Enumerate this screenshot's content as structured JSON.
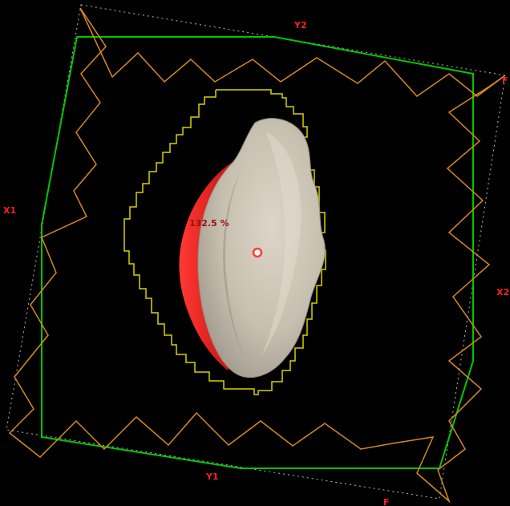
{
  "viewer": {
    "labels": {
      "y2": "Y2",
      "y1": "Y1",
      "x1": "X1",
      "x2": "X2",
      "corner_right": "F",
      "corner_bottom": "F",
      "dose_readout": "132.5 %"
    },
    "colors": {
      "background": "#000000",
      "field_outline": "#00c800",
      "collimator_outline": "#d88a1a",
      "aperture_outline": "#d7d300",
      "label_text": "#ff2020",
      "dose_text": "#9b1010",
      "structure_main": "#c9c1b2",
      "structure_overlay": "#e31a17",
      "isocenter_marker": "#ff3a3a"
    },
    "icons": {
      "isocenter": "isocenter-marker-icon"
    }
  }
}
